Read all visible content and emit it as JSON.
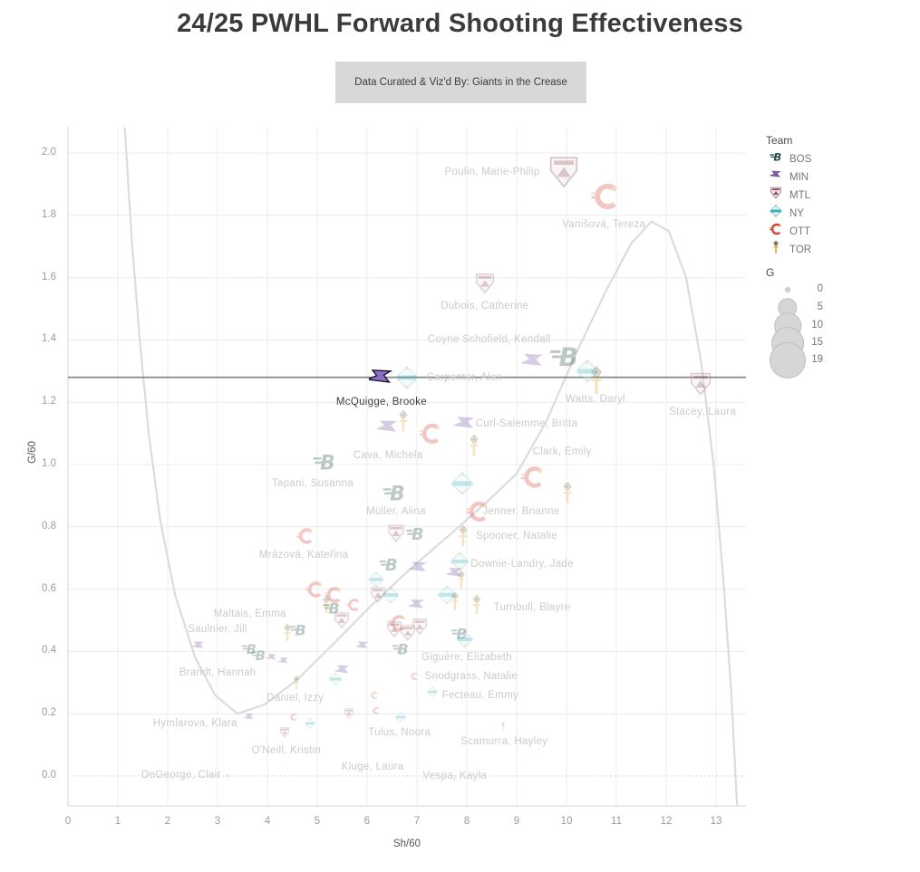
{
  "title": "24/25 PWHL Forward Shooting Effectiveness",
  "subtitle": "Data Curated & Viz'd By: Giants in the Crease",
  "legend": {
    "team_title": "Team",
    "teams": [
      {
        "id": "BOS",
        "label": "BOS"
      },
      {
        "id": "MIN",
        "label": "MIN"
      },
      {
        "id": "MTL",
        "label": "MTL"
      },
      {
        "id": "NY",
        "label": "NY"
      },
      {
        "id": "OTT",
        "label": "OTT"
      },
      {
        "id": "TOR",
        "label": "TOR"
      }
    ],
    "size_title": "G",
    "sizes": [
      0,
      5,
      10,
      15,
      19
    ]
  },
  "colors": {
    "BOS": "#25514a",
    "MIN": "#7a5ca8",
    "MTL": "#8a4a56",
    "NY": "#3aacb6",
    "OTT": "#d6453c",
    "TOR": "#dfa82a",
    "accent_navy": "#24365c",
    "accent_orange": "#ef8f3e",
    "grid": "#ececec",
    "axis_line": "#d5d5d5",
    "trend": "#dcdcdc",
    "ref_line": "#7f7f7f",
    "zero_line": "#c9c9c9",
    "label_faded": "#cbcbcb",
    "label_highlight": "#3d3d3d",
    "legend_circle": "#d6d6d6"
  },
  "chart_data": {
    "type": "scatter",
    "title": "24/25 PWHL Forward Shooting Effectiveness",
    "xlabel": "Sh/60",
    "ylabel": "G/60",
    "xlim": [
      0,
      13.6
    ],
    "ylim": [
      -0.096,
      2.084
    ],
    "x_ticks": [
      0,
      1,
      2,
      3,
      4,
      5,
      6,
      7,
      8,
      9,
      10,
      11,
      12,
      13
    ],
    "y_ticks": [
      0.0,
      0.2,
      0.4,
      0.6,
      0.8,
      1.0,
      1.2,
      1.4,
      1.6,
      1.8,
      2.0
    ],
    "grid": true,
    "ref_line_y": 1.28,
    "zero_dotted_y": 0.0,
    "highlight_player": "McQuigge, Brooke",
    "trend_points": [
      [
        1.14,
        2.08
      ],
      [
        1.28,
        1.72
      ],
      [
        1.44,
        1.4
      ],
      [
        1.62,
        1.1
      ],
      [
        1.85,
        0.82
      ],
      [
        2.15,
        0.58
      ],
      [
        2.55,
        0.38
      ],
      [
        2.95,
        0.26
      ],
      [
        3.4,
        0.2
      ],
      [
        3.95,
        0.23
      ],
      [
        4.6,
        0.31
      ],
      [
        5.3,
        0.42
      ],
      [
        6.1,
        0.55
      ],
      [
        6.9,
        0.67
      ],
      [
        7.7,
        0.78
      ],
      [
        8.4,
        0.88
      ],
      [
        9.0,
        0.97
      ],
      [
        9.6,
        1.14
      ],
      [
        10.2,
        1.36
      ],
      [
        10.8,
        1.56
      ],
      [
        11.3,
        1.71
      ],
      [
        11.7,
        1.78
      ],
      [
        12.05,
        1.75
      ],
      [
        12.4,
        1.6
      ],
      [
        12.7,
        1.33
      ],
      [
        12.95,
        1.0
      ],
      [
        13.15,
        0.62
      ],
      [
        13.3,
        0.28
      ],
      [
        13.42,
        -0.09
      ]
    ],
    "points": [
      {
        "name": "Poulin, Marie-Philip",
        "team": "MTL",
        "x": 9.95,
        "y": 1.94,
        "g": 19
      },
      {
        "name": "Vanišová, Tereza",
        "team": "OTT",
        "x": 10.78,
        "y": 1.86,
        "g": 13
      },
      {
        "name": "Dubois, Catherine",
        "team": "MTL",
        "x": 8.36,
        "y": 1.58,
        "g": 8
      },
      {
        "name": "Coyne Schofield, Kendall",
        "team": "MIN",
        "x": 9.33,
        "y": 1.33,
        "g": 9
      },
      {
        "team": "BOS",
        "x": 9.96,
        "y": 1.35,
        "g": 15
      },
      {
        "name": "Carpenter, Alex",
        "team": "NY",
        "x": 6.8,
        "y": 1.28,
        "g": 9
      },
      {
        "name": "Watts, Daryl",
        "team": "TOR",
        "x": 10.6,
        "y": 1.27,
        "g": 12
      },
      {
        "team": "NY",
        "x": 10.42,
        "y": 1.3,
        "g": 9
      },
      {
        "name": "Stacey, Laura",
        "team": "MTL",
        "x": 12.69,
        "y": 1.26,
        "g": 10
      },
      {
        "name": "Curl-Salemme, Britta",
        "team": "MIN",
        "x": 7.96,
        "y": 1.13,
        "g": 8
      },
      {
        "name": "Cava, Michela",
        "team": "MIN",
        "x": 6.42,
        "y": 1.12,
        "g": 8
      },
      {
        "team": "TOR",
        "x": 6.73,
        "y": 1.14,
        "g": 7
      },
      {
        "team": "OTT",
        "x": 7.27,
        "y": 1.1,
        "g": 8
      },
      {
        "team": "TOR",
        "x": 8.15,
        "y": 1.06,
        "g": 7
      },
      {
        "name": "Tapani, Susanna",
        "team": "BOS",
        "x": 5.15,
        "y": 1.01,
        "g": 9
      },
      {
        "name": "Clark, Emily",
        "team": "OTT",
        "x": 9.33,
        "y": 0.96,
        "g": 9
      },
      {
        "team": "NY",
        "x": 7.9,
        "y": 0.94,
        "g": 9
      },
      {
        "name": "Müller, Alina",
        "team": "BOS",
        "x": 6.55,
        "y": 0.91,
        "g": 9
      },
      {
        "team": "TOR",
        "x": 10.02,
        "y": 0.91,
        "g": 7
      },
      {
        "name": "Jenner, Brianne",
        "team": "OTT",
        "x": 8.22,
        "y": 0.85,
        "g": 8
      },
      {
        "name": "Mrázová, Kateřina",
        "team": "OTT",
        "x": 4.76,
        "y": 0.77,
        "g": 5
      },
      {
        "team": "MTL",
        "x": 6.58,
        "y": 0.78,
        "g": 6
      },
      {
        "team": "BOS",
        "x": 6.96,
        "y": 0.78,
        "g": 6
      },
      {
        "name": "Spooner, Natalie",
        "team": "TOR",
        "x": 7.93,
        "y": 0.77,
        "g": 7
      },
      {
        "team": "BOS",
        "x": 6.44,
        "y": 0.68,
        "g": 6
      },
      {
        "team": "MIN",
        "x": 7.04,
        "y": 0.67,
        "g": 6
      },
      {
        "name": "Downie-Landry, Jade",
        "team": "NY",
        "x": 7.85,
        "y": 0.69,
        "g": 6
      },
      {
        "team": "MIN",
        "x": 7.76,
        "y": 0.65,
        "g": 5
      },
      {
        "team": "TOR",
        "x": 7.89,
        "y": 0.63,
        "g": 5
      },
      {
        "team": "NY",
        "x": 6.18,
        "y": 0.63,
        "g": 4
      },
      {
        "team": "OTT",
        "x": 4.94,
        "y": 0.6,
        "g": 5
      },
      {
        "team": "OTT",
        "x": 5.33,
        "y": 0.58,
        "g": 5
      },
      {
        "team": "TOR",
        "x": 5.18,
        "y": 0.55,
        "g": 5
      },
      {
        "team": "BOS",
        "x": 5.29,
        "y": 0.54,
        "g": 5
      },
      {
        "team": "OTT",
        "x": 5.73,
        "y": 0.55,
        "g": 3
      },
      {
        "team": "MTL",
        "x": 6.22,
        "y": 0.58,
        "g": 5
      },
      {
        "team": "NY",
        "x": 6.47,
        "y": 0.58,
        "g": 5
      },
      {
        "team": "MIN",
        "x": 7.0,
        "y": 0.55,
        "g": 5
      },
      {
        "team": "NY",
        "x": 7.6,
        "y": 0.58,
        "g": 6
      },
      {
        "team": "TOR",
        "x": 7.76,
        "y": 0.56,
        "g": 5
      },
      {
        "name": "Turnbull, Blayre",
        "team": "TOR",
        "x": 8.2,
        "y": 0.55,
        "g": 6
      },
      {
        "team": "MTL",
        "x": 5.49,
        "y": 0.5,
        "g": 5
      },
      {
        "name": "Maltais, Emma",
        "team": "TOR",
        "x": 4.4,
        "y": 0.46,
        "g": 5
      },
      {
        "team": "BOS",
        "x": 4.62,
        "y": 0.47,
        "g": 5
      },
      {
        "team": "OTT",
        "x": 6.62,
        "y": 0.49,
        "g": 5
      },
      {
        "team": "MTL",
        "x": 6.55,
        "y": 0.47,
        "g": 5
      },
      {
        "team": "MTL",
        "x": 6.82,
        "y": 0.46,
        "g": 5
      },
      {
        "team": "MTL",
        "x": 7.05,
        "y": 0.48,
        "g": 5
      },
      {
        "team": "BOS",
        "x": 7.85,
        "y": 0.46,
        "g": 5
      },
      {
        "name": "Giguère, Elizabeth",
        "team": "NY",
        "x": 7.96,
        "y": 0.44,
        "g": 5
      },
      {
        "name": "Saulnier, Jill",
        "team": "MIN",
        "x": 2.62,
        "y": 0.42,
        "g": 3
      },
      {
        "team": "BOS",
        "x": 3.64,
        "y": 0.41,
        "g": 4
      },
      {
        "name": "Brandt, Hannah",
        "team": "BOS",
        "x": 3.82,
        "y": 0.39,
        "g": 4
      },
      {
        "team": "MIN",
        "x": 4.09,
        "y": 0.38,
        "g": 2
      },
      {
        "team": "MIN",
        "x": 4.33,
        "y": 0.37,
        "g": 2
      },
      {
        "team": "MIN",
        "x": 5.9,
        "y": 0.42,
        "g": 3
      },
      {
        "team": "BOS",
        "x": 6.67,
        "y": 0.41,
        "g": 5
      },
      {
        "team": "MIN",
        "x": 5.51,
        "y": 0.34,
        "g": 4
      },
      {
        "team": "NY",
        "x": 5.36,
        "y": 0.31,
        "g": 3
      },
      {
        "name": "Daniel, Izzy",
        "team": "TOR",
        "x": 4.58,
        "y": 0.3,
        "g": 3
      },
      {
        "name": "Snodgrass, Natalie",
        "team": "OTT",
        "x": 6.95,
        "y": 0.32,
        "g": 1
      },
      {
        "name": "Fecteau, Emmy",
        "team": "NY",
        "x": 7.31,
        "y": 0.27,
        "g": 2
      },
      {
        "team": "OTT",
        "x": 6.15,
        "y": 0.26,
        "g": 1
      },
      {
        "name": "Kluge, Laura",
        "team": "OTT",
        "x": 6.18,
        "y": 0.21,
        "g": 1
      },
      {
        "team": "MTL",
        "x": 5.64,
        "y": 0.2,
        "g": 2
      },
      {
        "team": "OTT",
        "x": 4.53,
        "y": 0.19,
        "g": 1
      },
      {
        "team": "NY",
        "x": 4.85,
        "y": 0.17,
        "g": 2
      },
      {
        "name": "Hymlarova, Klara",
        "team": "MIN",
        "x": 3.64,
        "y": 0.19,
        "g": 2
      },
      {
        "name": "O'Neill, Kristin",
        "team": "MTL",
        "x": 4.35,
        "y": 0.14,
        "g": 2
      },
      {
        "name": "Tulus, Noora",
        "team": "NY",
        "x": 6.67,
        "y": 0.19,
        "g": 2
      },
      {
        "name": "Scamurra, Hayley",
        "team": "TOR",
        "x": 8.73,
        "y": 0.16,
        "g": 1
      },
      {
        "name": "DeGeorge, Clair",
        "team": "MTL",
        "x": 3.2,
        "y": 0.0,
        "g": 0
      },
      {
        "name": "Vespa, Kayla",
        "team": "NY",
        "x": 7.75,
        "y": 0.0,
        "g": 0
      },
      {
        "name": "McQuigge, Brooke",
        "team": "MIN",
        "x": 6.27,
        "y": 1.28,
        "g": 9,
        "highlight": true
      }
    ],
    "labels": [
      {
        "text": "Poulin, Marie-Philip",
        "x": 8.51,
        "y": 1.94
      },
      {
        "text": "Vanišová, Tereza",
        "x": 10.75,
        "y": 1.77
      },
      {
        "text": "Dubois, Catherine",
        "x": 8.36,
        "y": 1.51
      },
      {
        "text": "Coyne Schofield, Kendall",
        "x": 8.45,
        "y": 1.4
      },
      {
        "text": "Carpenter, Alex",
        "x": 7.95,
        "y": 1.28
      },
      {
        "text": "McQuigge, Brooke",
        "x": 6.29,
        "y": 1.2,
        "highlight": true
      },
      {
        "text": "Watts, Daryl",
        "x": 10.58,
        "y": 1.21
      },
      {
        "text": "Stacey, Laura",
        "x": 12.73,
        "y": 1.17
      },
      {
        "text": "Curl-Salemme, Britta",
        "x": 9.2,
        "y": 1.13
      },
      {
        "text": "Clark, Emily",
        "x": 9.91,
        "y": 1.04
      },
      {
        "text": "Cava, Michela",
        "x": 6.42,
        "y": 1.03
      },
      {
        "text": "Tapani, Susanna",
        "x": 4.91,
        "y": 0.94
      },
      {
        "text": "Müller, Alina",
        "x": 6.58,
        "y": 0.85
      },
      {
        "text": "Jenner, Brianne",
        "x": 9.09,
        "y": 0.85
      },
      {
        "text": "Spooner, Natalie",
        "x": 9.0,
        "y": 0.77
      },
      {
        "text": "Downie-Landry, Jade",
        "x": 9.11,
        "y": 0.68
      },
      {
        "text": "Mrázová, Kateřina",
        "x": 4.73,
        "y": 0.71
      },
      {
        "text": "Turnbull, Blayre",
        "x": 9.31,
        "y": 0.54
      },
      {
        "text": "Maltais, Emma",
        "x": 3.65,
        "y": 0.52
      },
      {
        "text": "Saulnier, Jill",
        "x": 3.0,
        "y": 0.47
      },
      {
        "text": "Brandt, Hannah",
        "x": 3.0,
        "y": 0.33
      },
      {
        "text": "Giguère, Elizabeth",
        "x": 8.0,
        "y": 0.38
      },
      {
        "text": "Snodgrass, Natalie",
        "x": 8.09,
        "y": 0.32
      },
      {
        "text": "Fecteau, Emmy",
        "x": 8.27,
        "y": 0.26
      },
      {
        "text": "Daniel, Izzy",
        "x": 4.56,
        "y": 0.25
      },
      {
        "text": "Hymlarova, Klara",
        "x": 2.55,
        "y": 0.17
      },
      {
        "text": "O'Neill, Kristin",
        "x": 4.38,
        "y": 0.08
      },
      {
        "text": "Tulus, Noora",
        "x": 6.65,
        "y": 0.14
      },
      {
        "text": "Kluge, Laura",
        "x": 6.11,
        "y": 0.03
      },
      {
        "text": "Scamurra, Hayley",
        "x": 8.75,
        "y": 0.11
      },
      {
        "text": "DeGeorge, Clair",
        "x": 2.27,
        "y": 0.003
      },
      {
        "text": "Vespa, Kayla",
        "x": 7.76,
        "y": 0.0
      }
    ]
  }
}
